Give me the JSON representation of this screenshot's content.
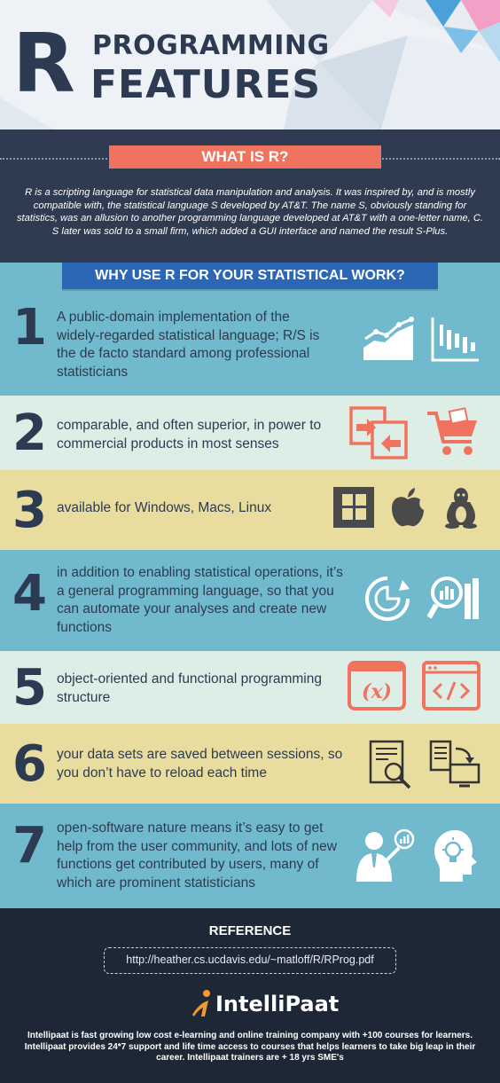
{
  "header": {
    "letter": "R",
    "line1": "PROGRAMMING",
    "line2": "FEATURES"
  },
  "what_is_r": {
    "title": "WHAT IS R?",
    "description": "R is a scripting language for statistical data manipulation and analysis. It was inspired by, and is mostly compatible with, the statistical language S developed by AT&T. The name S, obviously standing for statistics, was an allusion to another programming language developed at AT&T with a one-letter name, C. S later was sold to a small firm, which added a GUI interface and named the result S-Plus."
  },
  "why": {
    "title": "WHY USE R FOR YOUR STATISTICAL WORK?",
    "items": [
      {
        "num": "1",
        "text": "A public-domain implementation of the widely-regarded statistical language; R/S is the de facto standard among professional statisticians",
        "bg": "#71b9cc",
        "icons": [
          "line-chart-icon",
          "bar-chart-icon"
        ]
      },
      {
        "num": "2",
        "text": "comparable, and often superior, in power to commercial products in most senses",
        "bg": "#ddeee6",
        "icons": [
          "compare-arrows-icon",
          "shopping-cart-icon"
        ]
      },
      {
        "num": "3",
        "text": "available for Windows, Macs, Linux",
        "bg": "#e8dc9e",
        "icons": [
          "windows-icon",
          "apple-icon",
          "linux-penguin-icon"
        ]
      },
      {
        "num": "4",
        "text": "in addition to enabling statistical operations, it’s a general programming language, so that you can automate your analyses and create new functions",
        "bg": "#71b9cc",
        "icons": [
          "refresh-chart-icon",
          "search-analysis-icon"
        ]
      },
      {
        "num": "5",
        "text": "object-oriented and functional programming structure",
        "bg": "#ddeee6",
        "icons": [
          "function-x-icon",
          "code-tag-icon"
        ]
      },
      {
        "num": "6",
        "text": "your data sets are saved between sessions, so you don’t have to reload each time",
        "bg": "#e8dc9e",
        "icons": [
          "data-search-icon",
          "data-transfer-icon"
        ]
      },
      {
        "num": "7",
        "text": "open-software nature means it’s easy to get help from the user community, and lots of new functions get contributed by users, many of which are prominent statisticians",
        "bg": "#71b9cc",
        "icons": [
          "presenter-icon",
          "idea-bulb-icon"
        ]
      }
    ]
  },
  "footer": {
    "reference_title": "REFERENCE",
    "reference_url": "http://heather.cs.ucdavis.edu/~matloff/R/RProg.pdf",
    "logo_text": "IntelliPaat",
    "about": "Intellipaat is fast growing low cost e-learning and online training company with +100 courses for learners. Intellipaat provides 24*7 support and life time access to courses that helps learners to take big leap in their career. Intellipaat trainers are + 18 yrs SME's"
  },
  "colors": {
    "navy": "#2d3b52",
    "coral": "#f0735f",
    "blue_pill": "#2c67b5",
    "teal": "#71b9cc",
    "mint": "#ddeee6",
    "sand": "#e8dc9e"
  }
}
